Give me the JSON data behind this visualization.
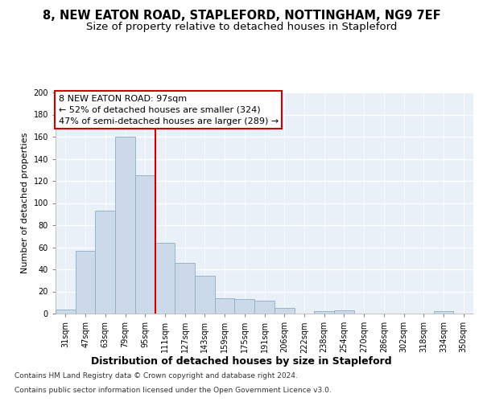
{
  "title": "8, NEW EATON ROAD, STAPLEFORD, NOTTINGHAM, NG9 7EF",
  "subtitle": "Size of property relative to detached houses in Stapleford",
  "xlabel": "Distribution of detached houses by size in Stapleford",
  "ylabel": "Number of detached properties",
  "categories": [
    "31sqm",
    "47sqm",
    "63sqm",
    "79sqm",
    "95sqm",
    "111sqm",
    "127sqm",
    "143sqm",
    "159sqm",
    "175sqm",
    "191sqm",
    "206sqm",
    "222sqm",
    "238sqm",
    "254sqm",
    "270sqm",
    "286sqm",
    "302sqm",
    "318sqm",
    "334sqm",
    "350sqm"
  ],
  "values": [
    4,
    57,
    93,
    160,
    125,
    64,
    46,
    34,
    14,
    13,
    12,
    5,
    0,
    2,
    3,
    0,
    0,
    0,
    0,
    2,
    0
  ],
  "bar_color": "#ccd9e8",
  "bar_edge_color": "#8aaec8",
  "red_line_color": "#cc0000",
  "annotation_line1": "8 NEW EATON ROAD: 97sqm",
  "annotation_line2": "← 52% of detached houses are smaller (324)",
  "annotation_line3": "47% of semi-detached houses are larger (289) →",
  "annotation_box_color": "#ffffff",
  "annotation_box_edge": "#cc0000",
  "footer1": "Contains HM Land Registry data © Crown copyright and database right 2024.",
  "footer2": "Contains public sector information licensed under the Open Government Licence v3.0.",
  "ylim": [
    0,
    200
  ],
  "yticks": [
    0,
    20,
    40,
    60,
    80,
    100,
    120,
    140,
    160,
    180,
    200
  ],
  "background_color": "#eaf0f8",
  "plot_bg_color": "#eaf0f8",
  "grid_color": "#ffffff",
  "fig_bg_color": "#ffffff",
  "title_fontsize": 10.5,
  "subtitle_fontsize": 9.5,
  "xlabel_fontsize": 9,
  "ylabel_fontsize": 8,
  "tick_fontsize": 7,
  "annot_fontsize": 8,
  "footer_fontsize": 6.5,
  "red_line_bin_index": 4
}
